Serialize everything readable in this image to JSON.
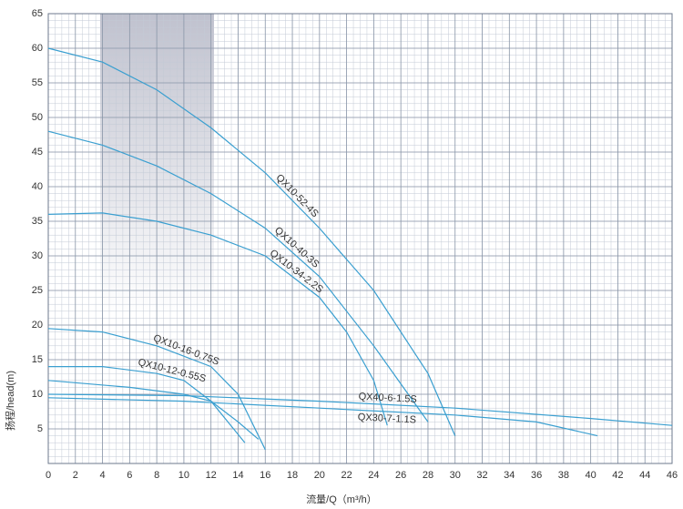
{
  "chart_data": {
    "type": "line",
    "x_label": "流量/Q（m³/h）",
    "y_label": "扬程/head(m)",
    "xlim": [
      0,
      46
    ],
    "xticks": [
      0,
      2,
      4,
      6,
      8,
      10,
      12,
      14,
      16,
      18,
      20,
      22,
      24,
      26,
      28,
      30,
      32,
      34,
      36,
      38,
      40,
      42,
      44,
      46
    ],
    "ylim": [
      0,
      65
    ],
    "yticks": [
      5,
      10,
      15,
      20,
      25,
      30,
      35,
      40,
      45,
      50,
      55,
      60,
      65
    ],
    "grid": true,
    "series": [
      {
        "name": "QX10-52-4S",
        "color": "#3a9fd0",
        "x": [
          0,
          4,
          8,
          12,
          16,
          20,
          24,
          28,
          30
        ],
        "values": [
          60,
          58,
          54,
          48.5,
          42,
          34,
          25,
          13,
          4
        ]
      },
      {
        "name": "QX10-40-3S",
        "color": "#3a9fd0",
        "x": [
          0,
          4,
          8,
          12,
          16,
          20,
          24,
          26,
          28
        ],
        "values": [
          48,
          46,
          43,
          39,
          34,
          27,
          17,
          11.5,
          6
        ]
      },
      {
        "name": "QX10-34-2.2S",
        "color": "#3a9fd0",
        "x": [
          0,
          4,
          8,
          12,
          16,
          20,
          22,
          24,
          25
        ],
        "values": [
          36,
          36.2,
          35,
          33,
          30,
          24,
          19,
          12,
          5.5
        ]
      },
      {
        "name": "QX10-16-0.75S",
        "color": "#3a9fd0",
        "x": [
          0,
          4,
          8,
          12,
          14,
          16
        ],
        "values": [
          19.5,
          19,
          17,
          14,
          10,
          2
        ]
      },
      {
        "name": "QX10-12-0.55S",
        "color": "#3a9fd0",
        "x": [
          0,
          4,
          8,
          10,
          12,
          14.5
        ],
        "values": [
          14,
          14,
          13,
          12,
          9,
          3
        ]
      },
      {
        "color": "#3a9fd0",
        "x": [
          0,
          6,
          10,
          12,
          14,
          15.5
        ],
        "values": [
          12,
          11,
          10,
          9,
          6,
          3.5
        ]
      },
      {
        "name": "QX40-6-1.5S",
        "color": "#3a9fd0",
        "x": [
          0,
          10,
          20,
          30,
          40,
          46
        ],
        "values": [
          10,
          9.8,
          9,
          8,
          6.5,
          5.5
        ]
      },
      {
        "name": "QX30-7-1.1S",
        "color": "#3a9fd0",
        "x": [
          0,
          10,
          20,
          30,
          36,
          40.5
        ],
        "values": [
          9.5,
          9,
          8,
          7,
          6,
          4
        ]
      }
    ]
  }
}
